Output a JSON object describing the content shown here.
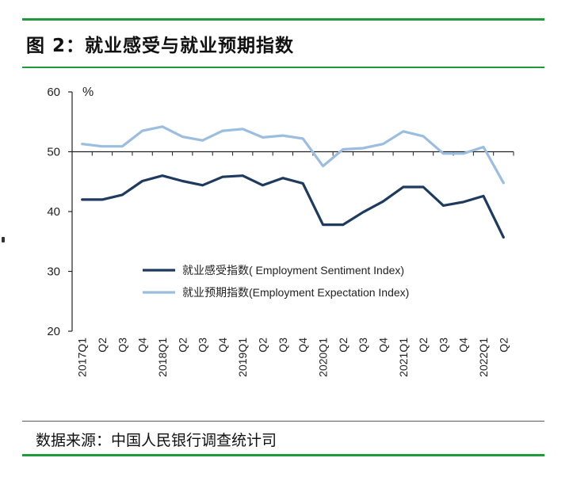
{
  "figure_title": "图 2：就业感受与就业预期指数",
  "source_note": "数据来源：中国人民银行调查统计司",
  "colors": {
    "rule": "#1f9a3c",
    "sentiment": "#1f3a5f",
    "expectation": "#9bbde0",
    "axis": "#222222"
  },
  "chart_data": {
    "type": "line",
    "ylabel": "%",
    "ylim": [
      20,
      60
    ],
    "yticks": [
      20,
      30,
      40,
      50,
      60
    ],
    "x_axis_crosses_at": 50,
    "grid": false,
    "legend_position": "center-bottom",
    "categories": [
      "2017Q1",
      "Q2",
      "Q3",
      "Q4",
      "2018Q1",
      "Q2",
      "Q3",
      "Q4",
      "2019Q1",
      "Q2",
      "Q3",
      "Q4",
      "2020Q1",
      "Q2",
      "Q3",
      "Q4",
      "2021Q1",
      "Q2",
      "Q3",
      "Q4",
      "2022Q1",
      "Q2"
    ],
    "series": [
      {
        "name": "就业感受指数( Employment Sentiment Index)",
        "values": [
          42.0,
          42.0,
          42.8,
          45.1,
          46.0,
          45.1,
          44.4,
          45.8,
          46.0,
          44.4,
          45.6,
          44.7,
          37.8,
          37.8,
          39.9,
          41.7,
          44.1,
          44.1,
          41.0,
          41.6,
          42.6,
          35.7
        ]
      },
      {
        "name": "就业预期指数(Employment Expectation Index)",
        "values": [
          51.3,
          50.9,
          50.9,
          53.5,
          54.2,
          52.5,
          51.9,
          53.5,
          53.8,
          52.4,
          52.7,
          52.2,
          47.6,
          50.4,
          50.6,
          51.3,
          53.4,
          52.6,
          49.7,
          49.7,
          50.8,
          44.8
        ]
      }
    ]
  }
}
